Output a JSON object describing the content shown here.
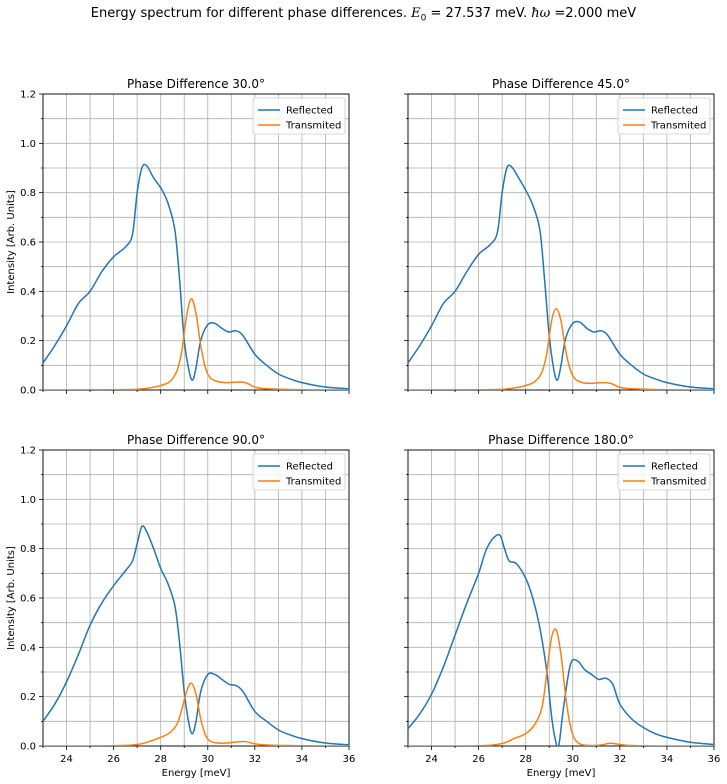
{
  "figure": {
    "suptitle": {
      "prefix": "Energy spectrum for different phase differences. ",
      "e0_symbol": "E",
      "e0_sub": "0",
      "e0_text": " = 27.537 meV. ",
      "hw_symbol": "ħω",
      "hw_text": " =2.000 meV"
    }
  },
  "chart_data": [
    {
      "type": "line",
      "title": "Phase Difference 30.0°",
      "xlabel": "",
      "ylabel": "Intensity [Arb. Units]",
      "xlim": [
        23,
        36
      ],
      "ylim": [
        0,
        1.2
      ],
      "xticks": [
        24,
        26,
        28,
        30,
        32,
        34,
        36
      ],
      "yticks": [
        0.0,
        0.2,
        0.4,
        0.6,
        0.8,
        1.0,
        1.2
      ],
      "show_xticklabels": false,
      "show_yticklabels": true,
      "grid": true,
      "legend": "top-right",
      "series": [
        {
          "name": "Reflected",
          "color": "#1f77b4",
          "x": [
            23,
            23.5,
            24,
            24.5,
            25,
            25.5,
            26,
            26.5,
            26.8,
            27,
            27.2,
            27.4,
            27.7,
            28,
            28.3,
            28.6,
            28.8,
            29,
            29.2,
            29.35,
            29.5,
            29.7,
            30,
            30.3,
            30.6,
            30.9,
            31.2,
            31.5,
            32,
            32.5,
            33,
            33.5,
            34,
            35,
            36
          ],
          "y": [
            0.11,
            0.18,
            0.26,
            0.35,
            0.4,
            0.48,
            0.54,
            0.58,
            0.63,
            0.8,
            0.9,
            0.91,
            0.86,
            0.82,
            0.76,
            0.65,
            0.45,
            0.2,
            0.08,
            0.04,
            0.09,
            0.2,
            0.265,
            0.27,
            0.25,
            0.235,
            0.24,
            0.22,
            0.145,
            0.1,
            0.065,
            0.045,
            0.03,
            0.012,
            0.005
          ]
        },
        {
          "name": "Transmited",
          "color": "#ff7f0e",
          "x": [
            23,
            26,
            27,
            27.5,
            28,
            28.4,
            28.7,
            28.9,
            29.1,
            29.3,
            29.5,
            29.7,
            29.9,
            30.1,
            30.4,
            30.8,
            31.2,
            31.6,
            32,
            32.5,
            34,
            36
          ],
          "y": [
            0,
            0.001,
            0.003,
            0.008,
            0.018,
            0.035,
            0.08,
            0.16,
            0.3,
            0.37,
            0.31,
            0.18,
            0.09,
            0.05,
            0.035,
            0.03,
            0.032,
            0.03,
            0.012,
            0.005,
            0.001,
            0
          ]
        }
      ]
    },
    {
      "type": "line",
      "title": "Phase Difference 45.0°",
      "xlabel": "",
      "ylabel": "",
      "xlim": [
        23,
        36
      ],
      "ylim": [
        0,
        1.2
      ],
      "xticks": [
        24,
        26,
        28,
        30,
        32,
        34,
        36
      ],
      "yticks": [
        0.0,
        0.2,
        0.4,
        0.6,
        0.8,
        1.0,
        1.2
      ],
      "show_xticklabels": false,
      "show_yticklabels": false,
      "grid": true,
      "legend": "top-right",
      "series": [
        {
          "name": "Reflected",
          "color": "#1f77b4",
          "x": [
            23,
            23.5,
            24,
            24.5,
            25,
            25.5,
            26,
            26.5,
            26.8,
            27,
            27.2,
            27.4,
            27.7,
            28,
            28.3,
            28.6,
            28.8,
            29,
            29.2,
            29.35,
            29.5,
            29.7,
            30,
            30.3,
            30.6,
            30.9,
            31.2,
            31.5,
            32,
            32.5,
            33,
            33.5,
            34,
            35,
            36
          ],
          "y": [
            0.11,
            0.18,
            0.26,
            0.35,
            0.4,
            0.48,
            0.55,
            0.59,
            0.64,
            0.8,
            0.9,
            0.905,
            0.86,
            0.81,
            0.75,
            0.65,
            0.45,
            0.22,
            0.08,
            0.04,
            0.1,
            0.21,
            0.27,
            0.275,
            0.25,
            0.235,
            0.24,
            0.22,
            0.145,
            0.1,
            0.065,
            0.045,
            0.03,
            0.012,
            0.005
          ]
        },
        {
          "name": "Transmited",
          "color": "#ff7f0e",
          "x": [
            23,
            26,
            27,
            27.5,
            28,
            28.4,
            28.7,
            28.9,
            29.1,
            29.3,
            29.5,
            29.7,
            29.9,
            30.1,
            30.4,
            30.8,
            31.2,
            31.6,
            32,
            32.5,
            34,
            36
          ],
          "y": [
            0,
            0.001,
            0.003,
            0.008,
            0.018,
            0.035,
            0.075,
            0.15,
            0.28,
            0.33,
            0.28,
            0.16,
            0.08,
            0.045,
            0.03,
            0.027,
            0.03,
            0.027,
            0.011,
            0.005,
            0.001,
            0
          ]
        }
      ]
    },
    {
      "type": "line",
      "title": "Phase Difference 90.0°",
      "xlabel": "Energy [meV]",
      "ylabel": "Intensity [Arb. Units]",
      "xlim": [
        23,
        36
      ],
      "ylim": [
        0,
        1.2
      ],
      "xticks": [
        24,
        26,
        28,
        30,
        32,
        34,
        36
      ],
      "yticks": [
        0.0,
        0.2,
        0.4,
        0.6,
        0.8,
        1.0,
        1.2
      ],
      "show_xticklabels": true,
      "show_yticklabels": true,
      "grid": true,
      "legend": "top-right",
      "series": [
        {
          "name": "Reflected",
          "color": "#1f77b4",
          "x": [
            23,
            23.5,
            24,
            24.5,
            25,
            25.5,
            26,
            26.5,
            26.8,
            27,
            27.2,
            27.4,
            27.7,
            28,
            28.3,
            28.6,
            28.8,
            29,
            29.2,
            29.35,
            29.5,
            29.7,
            30,
            30.3,
            30.6,
            30.9,
            31.2,
            31.5,
            32,
            32.5,
            33,
            33.5,
            34,
            35,
            36
          ],
          "y": [
            0.1,
            0.17,
            0.26,
            0.37,
            0.49,
            0.58,
            0.65,
            0.71,
            0.75,
            0.82,
            0.89,
            0.87,
            0.8,
            0.72,
            0.66,
            0.57,
            0.42,
            0.22,
            0.09,
            0.05,
            0.1,
            0.22,
            0.29,
            0.29,
            0.27,
            0.25,
            0.245,
            0.22,
            0.14,
            0.1,
            0.065,
            0.045,
            0.03,
            0.012,
            0.005
          ]
        },
        {
          "name": "Transmited",
          "color": "#ff7f0e",
          "x": [
            23,
            26,
            27,
            27.5,
            28,
            28.4,
            28.7,
            28.9,
            29.1,
            29.3,
            29.5,
            29.7,
            29.9,
            30.1,
            30.4,
            30.8,
            31.2,
            31.6,
            32,
            32.5,
            34,
            36
          ],
          "y": [
            0,
            0.001,
            0.006,
            0.018,
            0.035,
            0.055,
            0.09,
            0.15,
            0.22,
            0.255,
            0.21,
            0.11,
            0.045,
            0.02,
            0.012,
            0.012,
            0.016,
            0.018,
            0.009,
            0.004,
            0.001,
            0
          ]
        }
      ]
    },
    {
      "type": "line",
      "title": "Phase Difference 180.0°",
      "xlabel": "Energy [meV]",
      "ylabel": "",
      "xlim": [
        23,
        36
      ],
      "ylim": [
        0,
        1.2
      ],
      "xticks": [
        24,
        26,
        28,
        30,
        32,
        34,
        36
      ],
      "yticks": [
        0.0,
        0.2,
        0.4,
        0.6,
        0.8,
        1.0,
        1.2
      ],
      "show_xticklabels": true,
      "show_yticklabels": false,
      "grid": true,
      "legend": "top-right",
      "series": [
        {
          "name": "Reflected",
          "color": "#1f77b4",
          "x": [
            23,
            23.5,
            24,
            24.5,
            25,
            25.5,
            26,
            26.3,
            26.6,
            26.9,
            27.1,
            27.3,
            27.6,
            28,
            28.3,
            28.6,
            28.9,
            29.1,
            29.25,
            29.4,
            29.6,
            29.9,
            30.2,
            30.5,
            30.8,
            31.1,
            31.4,
            31.7,
            32,
            32.5,
            33,
            33.5,
            34,
            35,
            36
          ],
          "y": [
            0.07,
            0.13,
            0.21,
            0.32,
            0.45,
            0.58,
            0.7,
            0.79,
            0.84,
            0.855,
            0.8,
            0.75,
            0.74,
            0.68,
            0.6,
            0.48,
            0.3,
            0.12,
            0.03,
            0.0,
            0.15,
            0.33,
            0.345,
            0.31,
            0.29,
            0.27,
            0.275,
            0.25,
            0.17,
            0.11,
            0.075,
            0.05,
            0.035,
            0.015,
            0.006
          ]
        },
        {
          "name": "Transmited",
          "color": "#ff7f0e",
          "x": [
            23,
            26,
            27,
            27.5,
            28,
            28.4,
            28.7,
            28.9,
            29.1,
            29.3,
            29.5,
            29.7,
            29.9,
            30.1,
            30.4,
            30.8,
            31.2,
            31.6,
            32,
            32.5,
            34,
            36
          ],
          "y": [
            0,
            0.001,
            0.01,
            0.03,
            0.05,
            0.09,
            0.16,
            0.3,
            0.44,
            0.47,
            0.37,
            0.2,
            0.08,
            0.025,
            0.005,
            0.002,
            0.004,
            0.011,
            0.006,
            0.002,
            0,
            0
          ]
        }
      ]
    }
  ]
}
